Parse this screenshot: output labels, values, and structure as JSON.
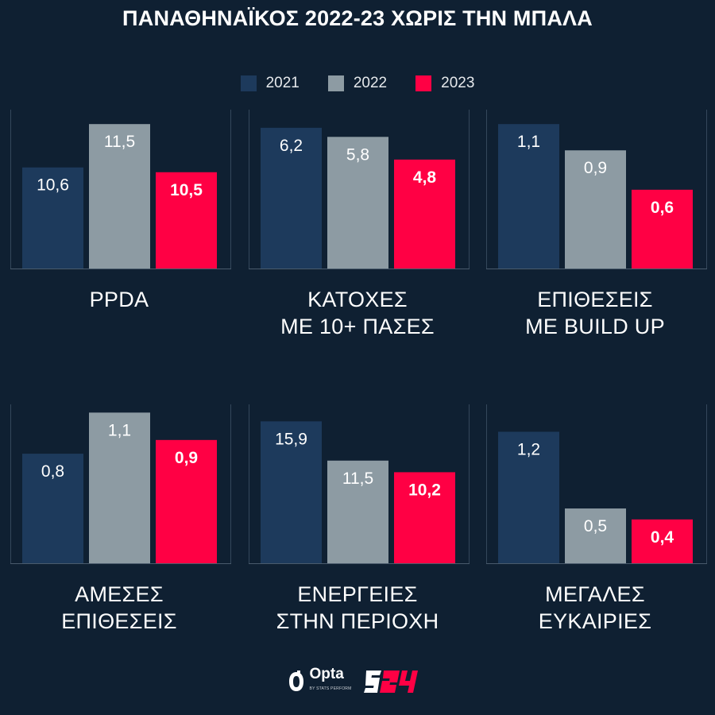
{
  "title": "ΠΑΝΑΘΗΝΑΪΚΟΣ 2022-23 ΧΩΡΙΣ ΤΗΝ ΜΠΑΛΑ",
  "legend": [
    {
      "label": "2021",
      "color": "#1d3a5c"
    },
    {
      "label": "2022",
      "color": "#8d9ba3"
    },
    {
      "label": "2023",
      "color": "#ff0044"
    }
  ],
  "chart_data": [
    {
      "type": "bar",
      "title": "PPDA",
      "title_lines": [
        "PPDA"
      ],
      "categories": [
        "2021",
        "2022",
        "2023"
      ],
      "values": [
        10.6,
        11.5,
        10.5
      ],
      "labels": [
        "10,6",
        "11,5",
        "10,5"
      ],
      "ylim": [
        8.5,
        11.8
      ]
    },
    {
      "type": "bar",
      "title": "ΚΑΤΟΧΕΣ ΜΕ 10+ ΠΑΣΕΣ",
      "title_lines": [
        "ΚΑΤΟΧΕΣ",
        "ΜΕ 10+ ΠΑΣΕΣ"
      ],
      "categories": [
        "2021",
        "2022",
        "2023"
      ],
      "values": [
        6.2,
        5.8,
        4.8
      ],
      "labels": [
        "6,2",
        "5,8",
        "4,8"
      ],
      "ylim": [
        0,
        7.0
      ]
    },
    {
      "type": "bar",
      "title": "ΕΠΙΘΕΣΕΙΣ ΜΕ BUILD UP",
      "title_lines": [
        "ΕΠΙΘΕΣΕΙΣ",
        "ΜΕ BUILD UP"
      ],
      "categories": [
        "2021",
        "2022",
        "2023"
      ],
      "values": [
        1.1,
        0.9,
        0.6
      ],
      "labels": [
        "1,1",
        "0,9",
        "0,6"
      ],
      "ylim": [
        0,
        1.21
      ]
    },
    {
      "type": "bar",
      "title": "ΑΜΕΣΕΣ ΕΠΙΘΕΣΕΙΣ",
      "title_lines": [
        "ΑΜΕΣΕΣ",
        "ΕΠΙΘΕΣΕΙΣ"
      ],
      "categories": [
        "2021",
        "2022",
        "2023"
      ],
      "values": [
        0.8,
        1.1,
        0.9
      ],
      "labels": [
        "0,8",
        "1,1",
        "0,9"
      ],
      "ylim": [
        0,
        1.16
      ]
    },
    {
      "type": "bar",
      "title": "ΕΝΕΡΓΕΙΕΣ ΣΤΗΝ ΠΕΡΙΟΧΗ",
      "title_lines": [
        "ΕΝΕΡΓΕΙΕΣ",
        "ΣΤΗΝ ΠΕΡΙΟΧΗ"
      ],
      "categories": [
        "2021",
        "2022",
        "2023"
      ],
      "values": [
        15.9,
        11.5,
        10.2
      ],
      "labels": [
        "15,9",
        "11,5",
        "10,2"
      ],
      "ylim": [
        0,
        17.8
      ]
    },
    {
      "type": "bar",
      "title": "ΜΕΓΑΛΕΣ ΕΥΚΑΙΡΙΕΣ",
      "title_lines": [
        "ΜΕΓΑΛΕΣ",
        "ΕΥΚΑΙΡΙΕΣ"
      ],
      "categories": [
        "2021",
        "2022",
        "2023"
      ],
      "values": [
        1.2,
        0.5,
        0.4
      ],
      "labels": [
        "1,2",
        "0,5",
        "0,4"
      ],
      "ylim": [
        0,
        1.45
      ]
    }
  ],
  "footer": {
    "opta_text": "Opta",
    "opta_sub": "BY STATS PERFORM",
    "brand_text": "S24",
    "opta_icon": "opta-logo-icon",
    "brand_icon": "s24-logo"
  }
}
